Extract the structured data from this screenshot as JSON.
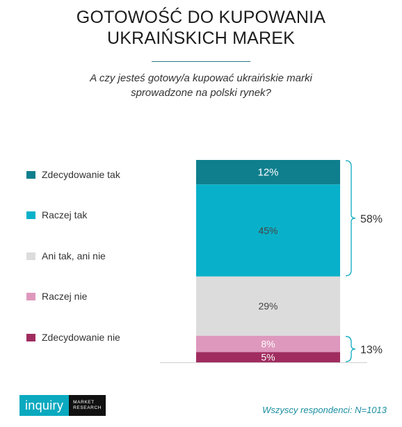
{
  "title_lines": [
    "GOTOWOŚĆ DO KUPOWANIA",
    "UKRAIŃSKICH MAREK"
  ],
  "subtitle_lines": [
    "A czy jesteś gotowy/a kupować ukraińskie marki",
    "sprowadzone na polski rynek?"
  ],
  "colors": {
    "zdecydowanie_tak": "#0f7f8e",
    "raczej_tak": "#08b1c9",
    "ani_tak_ani_nie": "#dcdcdc",
    "raczej_nie": "#de98bd",
    "zdecydowanie_nie": "#a02c5f",
    "brace": "#0aa9bf"
  },
  "chart_data": {
    "type": "bar",
    "stacked": true,
    "categories": [
      "Zdecydowanie tak",
      "Raczej tak",
      "Ani tak, ani nie",
      "Raczej nie",
      "Zdecydowanie nie"
    ],
    "values": [
      12,
      45,
      29,
      8,
      5
    ],
    "value_labels": [
      "12%",
      "45%",
      "29%",
      "8%",
      "5%"
    ],
    "series_colors": [
      "#0f7f8e",
      "#08b1c9",
      "#dcdcdc",
      "#de98bd",
      "#a02c5f"
    ],
    "label_colors": [
      "#ffffff",
      "#444444",
      "#444444",
      "#ffffff",
      "#ffffff"
    ],
    "annotations": [
      {
        "label": "58%",
        "from_index": 0,
        "to_index": 1
      },
      {
        "label": "13%",
        "from_index": 3,
        "to_index": 4
      }
    ]
  },
  "logo": {
    "name": "inquiry",
    "sub_line1": "MARKET",
    "sub_line2": "RESEARCH"
  },
  "footnote": "Wszyscy respondenci: N=1013"
}
